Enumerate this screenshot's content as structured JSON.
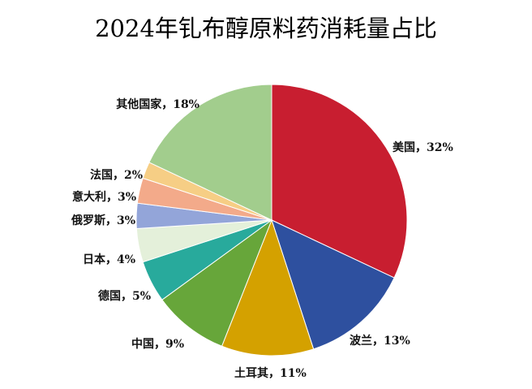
{
  "chart_data": {
    "type": "pie",
    "title": "2024年钆布醇原料药消耗量占比",
    "unit": "%",
    "separator": "，",
    "start": "top",
    "direction": "clockwise",
    "slices": [
      {
        "name": "美国",
        "value": 32,
        "color": "#C81E30"
      },
      {
        "name": "波兰",
        "value": 13,
        "color": "#2E509F"
      },
      {
        "name": "土耳其",
        "value": 11,
        "color": "#D4A100"
      },
      {
        "name": "中国",
        "value": 9,
        "color": "#67A63A"
      },
      {
        "name": "德国",
        "value": 5,
        "color": "#28AA9C"
      },
      {
        "name": "日本",
        "value": 4,
        "color": "#E4F0DA"
      },
      {
        "name": "俄罗斯",
        "value": 3,
        "color": "#93A5D9"
      },
      {
        "name": "意大利",
        "value": 3,
        "color": "#F3AA8A"
      },
      {
        "name": "法国",
        "value": 2,
        "color": "#F6CE85"
      },
      {
        "name": "其他国家",
        "value": 18,
        "color": "#A2CD8D"
      }
    ]
  }
}
